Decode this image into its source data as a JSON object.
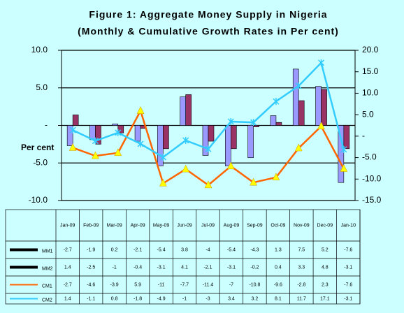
{
  "chart_data": {
    "type": "bar",
    "title": "Figure 1: Aggregate Money Supply in Nigeria",
    "subtitle": "(Monthly & Cumulative Growth Rates in Per cent)",
    "ylabel": "Per cent",
    "categories": [
      "Jan-09",
      "Feb-09",
      "Mar-09",
      "Apr-09",
      "May-09",
      "Jun-09",
      "Jul-09",
      "Aug-09",
      "Sep-09",
      "Oct-09",
      "Nov-09",
      "Dec-09",
      "Jan-10"
    ],
    "series": [
      {
        "name": "MM1",
        "type": "bar",
        "color": "#9999ff",
        "values": [
          -2.7,
          -1.9,
          0.2,
          -2.1,
          -5.4,
          3.8,
          -4.0,
          -5.4,
          -4.3,
          1.3,
          7.5,
          5.2,
          -7.6
        ]
      },
      {
        "name": "MM2",
        "type": "bar",
        "color": "#993366",
        "values": [
          1.4,
          -2.5,
          -1.0,
          -0.4,
          -3.1,
          4.1,
          -2.1,
          -3.1,
          -0.2,
          0.4,
          3.3,
          4.8,
          -3.1
        ]
      },
      {
        "name": "CM1",
        "type": "line",
        "axis": "y2",
        "color": "#ff6600",
        "values": [
          -2.7,
          -4.6,
          -3.9,
          5.9,
          -11.0,
          -7.7,
          -11.4,
          -7.0,
          -10.8,
          -9.6,
          -2.8,
          2.3,
          -7.6
        ]
      },
      {
        "name": "CM2",
        "type": "line",
        "axis": "y2",
        "color": "#33ccff",
        "values": [
          1.4,
          -1.1,
          0.8,
          -1.8,
          -4.9,
          -1.0,
          -3.0,
          3.4,
          3.2,
          8.1,
          11.7,
          17.1,
          -3.1
        ]
      }
    ],
    "ylim": [
      -10,
      10
    ],
    "yticks": [
      {
        "value": 10,
        "label": "10.0"
      },
      {
        "value": 5,
        "label": "5.0"
      },
      {
        "value": 0,
        "label": "-"
      },
      {
        "value": -5,
        "label": "-5.0"
      },
      {
        "value": -10,
        "label": "-10.0"
      }
    ],
    "y2lim": [
      -15,
      20
    ],
    "y2ticks": [
      {
        "value": 20,
        "label": "20.0"
      },
      {
        "value": 15,
        "label": "15.0"
      },
      {
        "value": 10,
        "label": "10.0"
      },
      {
        "value": 5,
        "label": "5.0"
      },
      {
        "value": 0,
        "label": "-"
      },
      {
        "value": -5,
        "label": "-5.0"
      },
      {
        "value": -10,
        "label": "-10.0"
      },
      {
        "value": -15,
        "label": "-15.0"
      }
    ],
    "grid": true
  }
}
